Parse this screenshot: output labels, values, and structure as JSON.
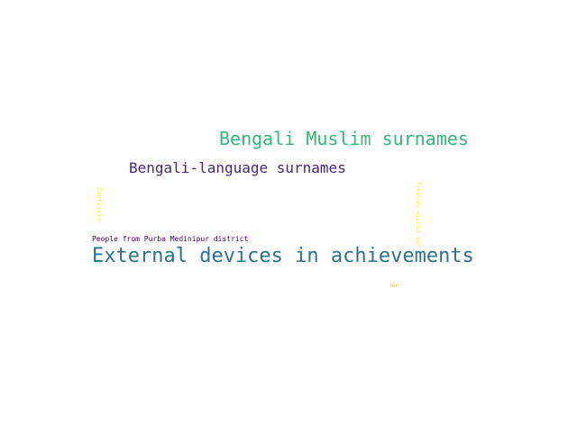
{
  "word_cloud": {
    "words": [
      {
        "text": "Bengali Muslim surnames",
        "color": "#35b779"
      },
      {
        "text": "Bengali-language surnames",
        "color": "#482677"
      },
      {
        "text": "External devices in achievements",
        "color": "#2c728e"
      },
      {
        "text": "People from Purba Medinipur district",
        "color": "#440154"
      },
      {
        "text": "Conflicts",
        "color": "#fde725"
      },
      {
        "text": "Treaties against war",
        "color": "#fde725"
      },
      {
        "text": "War",
        "color": "#dde318"
      }
    ]
  }
}
